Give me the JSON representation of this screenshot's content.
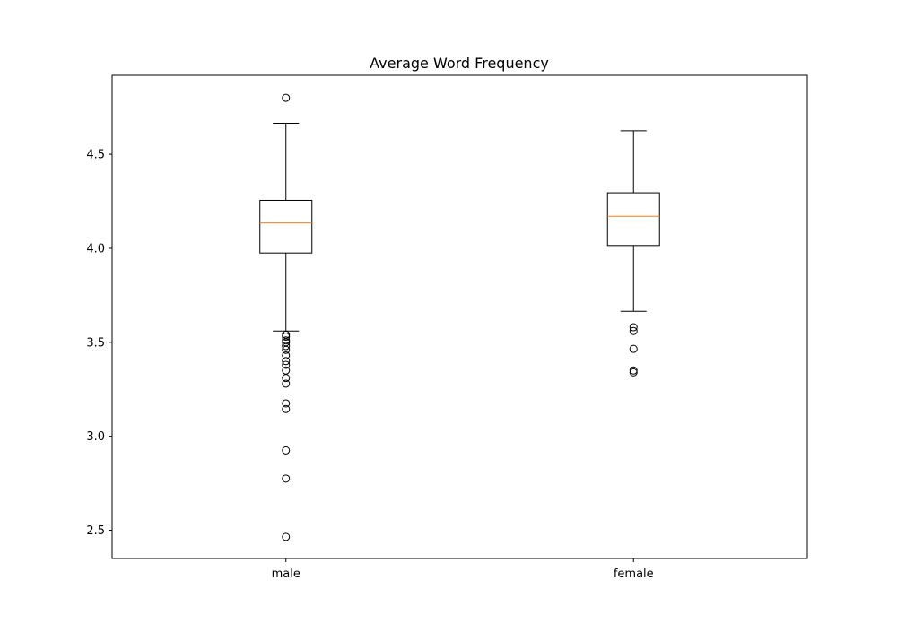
{
  "chart_data": {
    "type": "box",
    "title": "Average Word Frequency",
    "xlabel": "",
    "ylabel": "",
    "categories": [
      "male",
      "female"
    ],
    "ylim": [
      2.35,
      4.92
    ],
    "yticks": [
      2.5,
      3.0,
      3.5,
      4.0,
      4.5
    ],
    "ytick_labels": [
      "2.5",
      "3.0",
      "3.5",
      "4.0",
      "4.5"
    ],
    "grid": false,
    "box_color": "#000000",
    "median_color": "#ff7f0e",
    "boxes": [
      {
        "name": "male",
        "whisker_low": 3.56,
        "q1": 3.975,
        "median": 4.135,
        "q3": 4.255,
        "whisker_high": 4.665,
        "outliers": [
          4.8,
          3.54,
          3.53,
          3.51,
          3.5,
          3.48,
          3.46,
          3.43,
          3.4,
          3.38,
          3.35,
          3.31,
          3.28,
          3.175,
          3.145,
          2.925,
          2.775,
          2.465
        ]
      },
      {
        "name": "female",
        "whisker_low": 3.665,
        "q1": 4.015,
        "median": 4.17,
        "q3": 4.295,
        "whisker_high": 4.625,
        "outliers": [
          3.58,
          3.56,
          3.465,
          3.35,
          3.34
        ]
      }
    ]
  }
}
